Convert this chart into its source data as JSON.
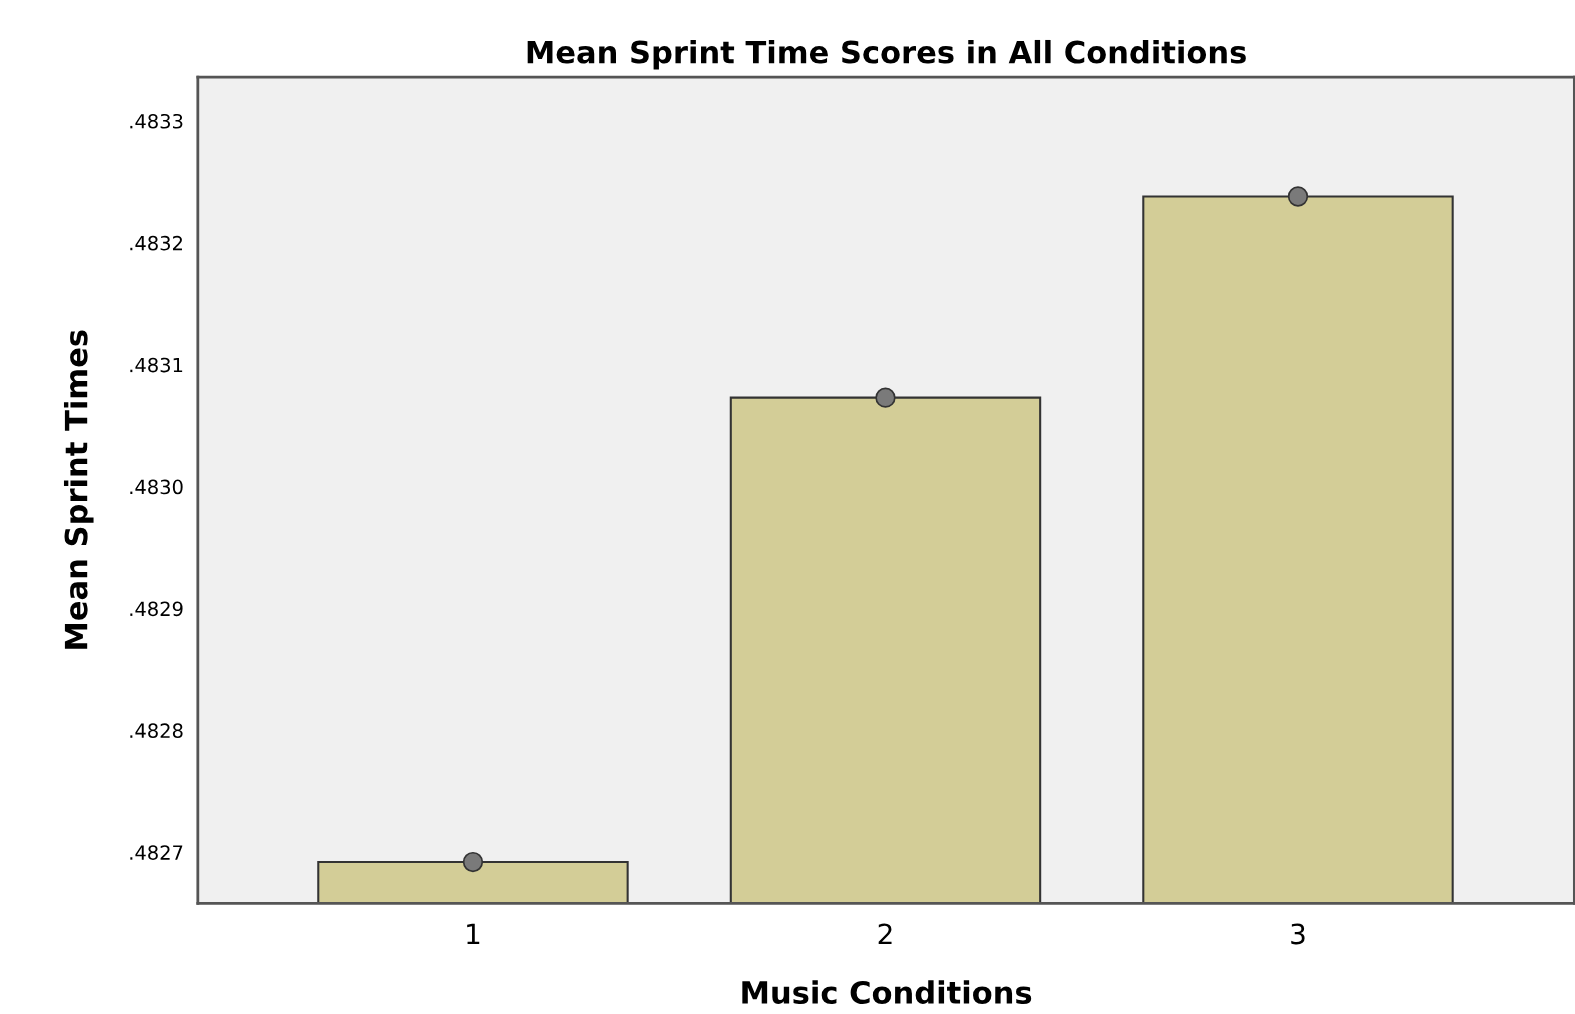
{
  "chart_data": {
    "type": "bar",
    "title": "Mean Sprint Time Scores in All Conditions",
    "xlabel": "Music Conditions",
    "ylabel": "Mean Sprint Times",
    "categories": [
      "1",
      "2",
      "3"
    ],
    "series": [
      {
        "color": "#d3cd97",
        "values": [
          0.482692,
          0.483073,
          0.483238
        ]
      },
      {
        "type": "scatter",
        "color": "#7a7a7a",
        "x": [
          "1",
          "2",
          "3"
        ],
        "values": [
          0.482692,
          0.483073,
          0.483238
        ]
      }
    ],
    "ylim": [
      0.482658,
      0.483336
    ],
    "yticks": [
      {
        "value": 0.4827,
        "label": ".4827"
      },
      {
        "value": 0.4828,
        "label": ".4828"
      },
      {
        "value": 0.4829,
        "label": ".4829"
      },
      {
        "value": 0.483,
        "label": ".4830"
      },
      {
        "value": 0.4831,
        "label": ".4831"
      },
      {
        "value": 0.4832,
        "label": ".4832"
      },
      {
        "value": 0.4833,
        "label": ".4833"
      }
    ],
    "grid": false,
    "legend": false,
    "marker": "circle"
  }
}
